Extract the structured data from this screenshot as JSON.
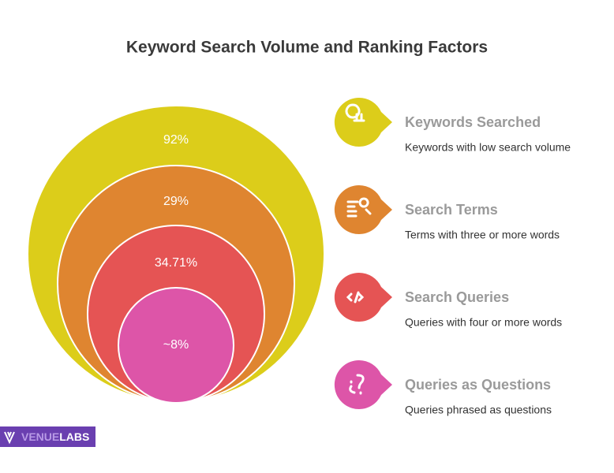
{
  "title": "Keyword Search Volume and Ranking Factors",
  "items": [
    {
      "label": "Keywords Searched",
      "description": "Keywords with low search volume",
      "value": "92%",
      "color": "#dccd1a"
    },
    {
      "label": "Search Terms",
      "description": "Terms with three or more words",
      "value": "29%",
      "color": "#df8530"
    },
    {
      "label": "Search Queries",
      "description": "Queries with four or more words",
      "value": "34.71%",
      "color": "#e55454"
    },
    {
      "label": "Queries as Questions",
      "description": "Queries phrased as questions",
      "value": "~8%",
      "color": "#dd55a8"
    }
  ],
  "logo": {
    "part1": "VENUE",
    "part2": "LABS"
  }
}
